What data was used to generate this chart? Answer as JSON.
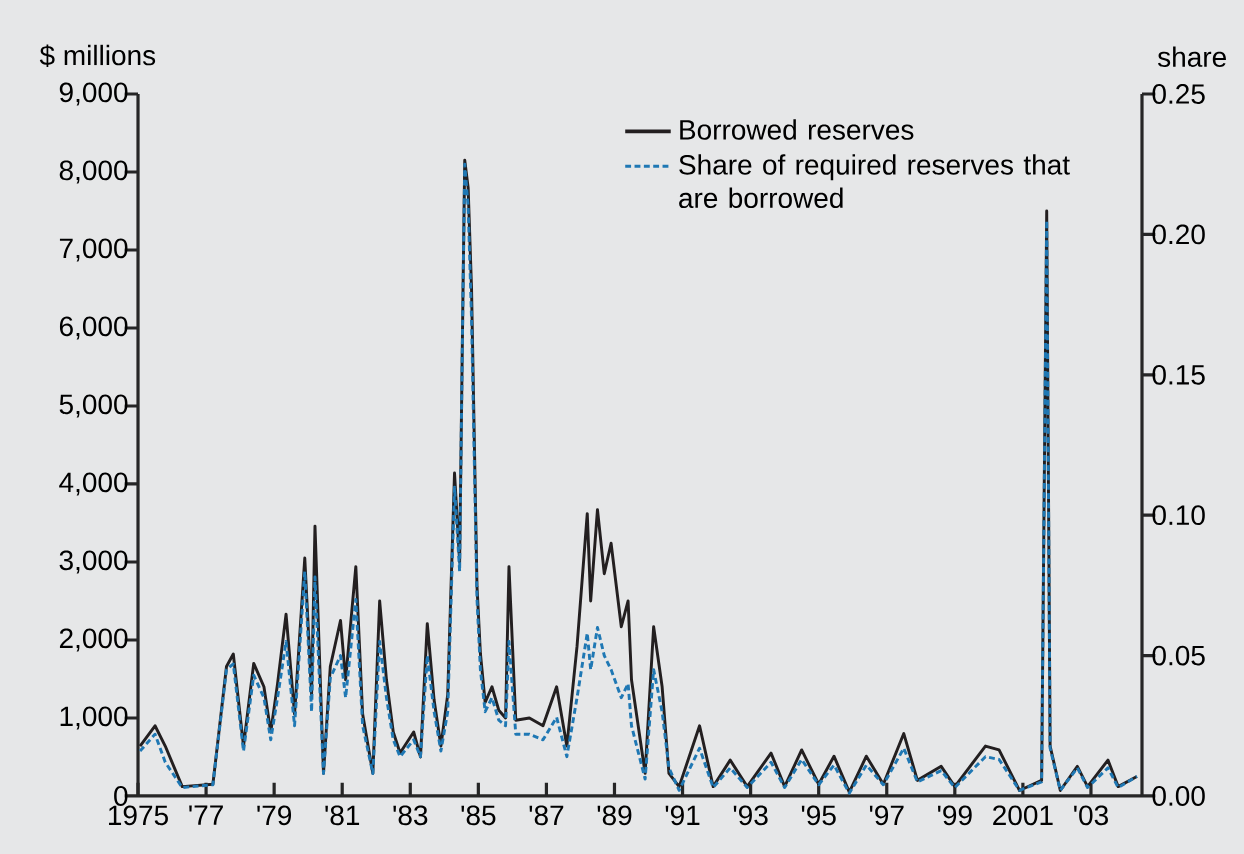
{
  "chart_data": {
    "type": "line",
    "ylabel": "$ millions",
    "y2label": "share",
    "x": [
      1975.06,
      1975.5,
      1975.8,
      1976.3,
      1977.2,
      1977.6,
      1977.8,
      1978.1,
      1978.4,
      1978.7,
      1978.9,
      1979.1,
      1979.35,
      1979.6,
      1979.9,
      1980.1,
      1980.2,
      1980.45,
      1980.65,
      1980.95,
      1981.1,
      1981.4,
      1981.6,
      1981.9,
      1982.1,
      1982.3,
      1982.5,
      1982.7,
      1983.1,
      1983.3,
      1983.5,
      1983.7,
      1983.9,
      1984.1,
      1984.3,
      1984.45,
      1984.55,
      1984.6,
      1984.7,
      1984.8,
      1984.96,
      1985.06,
      1985.2,
      1985.4,
      1985.6,
      1985.8,
      1985.9,
      1986.1,
      1986.5,
      1986.9,
      1987.3,
      1987.6,
      1987.9,
      1988.2,
      1988.3,
      1988.5,
      1988.7,
      1988.9,
      1989.2,
      1989.4,
      1989.5,
      1989.9,
      1990.15,
      1990.4,
      1990.6,
      1990.9,
      1991.5,
      1991.9,
      1992.4,
      1992.9,
      1993.6,
      1994,
      1994.5,
      1995,
      1995.45,
      1995.9,
      1996.4,
      1996.9,
      1997.5,
      1997.9,
      1998.6,
      1999,
      1999.9,
      2000.3,
      2000.9,
      2001.55,
      2001.7,
      2001.8,
      2002.1,
      2002.6,
      2002.9,
      2003.5,
      2003.8,
      2004.35
    ],
    "series": [
      {
        "name": "Borrowed reserves",
        "color": "#231f20",
        "line_style": "solid",
        "values": [
          640,
          900,
          640,
          120,
          150,
          1660,
          1820,
          640,
          1700,
          1400,
          820,
          1440,
          2330,
          1050,
          3050,
          1300,
          3460,
          290,
          1660,
          2250,
          1490,
          2940,
          1050,
          290,
          2500,
          1490,
          820,
          550,
          820,
          500,
          2210,
          1230,
          640,
          1300,
          4140,
          3000,
          6500,
          8150,
          7800,
          6500,
          2690,
          1830,
          1200,
          1400,
          1100,
          1000,
          2940,
          970,
          1000,
          900,
          1400,
          640,
          1920,
          3620,
          2500,
          3670,
          2850,
          3240,
          2170,
          2500,
          1490,
          290,
          2170,
          1400,
          290,
          120,
          900,
          120,
          460,
          120,
          550,
          120,
          590,
          150,
          510,
          50,
          510,
          150,
          800,
          200,
          380,
          120,
          640,
          590,
          70,
          200,
          7500,
          640,
          70,
          380,
          120,
          460,
          120,
          250
        ]
      },
      {
        "name": "Share of required reserves that are borrowed",
        "color": "#1f78b4",
        "line_style": "dashed",
        "axis": "y2",
        "values": [
          0.016,
          0.022,
          0.012,
          0.003,
          0.004,
          0.045,
          0.047,
          0.016,
          0.043,
          0.035,
          0.02,
          0.035,
          0.055,
          0.025,
          0.08,
          0.03,
          0.078,
          0.008,
          0.042,
          0.05,
          0.035,
          0.07,
          0.025,
          0.008,
          0.055,
          0.035,
          0.02,
          0.014,
          0.02,
          0.014,
          0.05,
          0.03,
          0.016,
          0.03,
          0.11,
          0.08,
          0.18,
          0.225,
          0.21,
          0.17,
          0.07,
          0.045,
          0.03,
          0.035,
          0.027,
          0.025,
          0.055,
          0.022,
          0.022,
          0.02,
          0.028,
          0.014,
          0.035,
          0.058,
          0.045,
          0.06,
          0.05,
          0.045,
          0.035,
          0.04,
          0.025,
          0.006,
          0.045,
          0.03,
          0.01,
          0.002,
          0.017,
          0.003,
          0.01,
          0.003,
          0.012,
          0.003,
          0.013,
          0.004,
          0.011,
          0.001,
          0.011,
          0.004,
          0.017,
          0.005,
          0.009,
          0.003,
          0.014,
          0.013,
          0.002,
          0.005,
          0.205,
          0.017,
          0.002,
          0.01,
          0.003,
          0.01,
          0.003,
          0.007
        ]
      }
    ],
    "xlim": [
      1975,
      2004.5
    ],
    "xticks": [
      1975,
      {
        "value": 1977,
        "label": "'77"
      },
      {
        "value": 1979,
        "label": "'79"
      },
      {
        "value": 1981,
        "label": "'81"
      },
      {
        "value": 1983,
        "label": "'83"
      },
      {
        "value": 1985,
        "label": "'85"
      },
      {
        "value": 1987,
        "label": "'87"
      },
      {
        "value": 1989,
        "label": "'89"
      },
      {
        "value": 1991,
        "label": "'91"
      },
      {
        "value": 1993,
        "label": "'93"
      },
      {
        "value": 1995,
        "label": "'95"
      },
      {
        "value": 1997,
        "label": "'97"
      },
      {
        "value": 1999,
        "label": "'99"
      },
      2001,
      {
        "value": 2003,
        "label": "'03"
      }
    ],
    "ylim": [
      0,
      9000
    ],
    "yticks": [
      0,
      {
        "value": 1000,
        "label": "1,000"
      },
      {
        "value": 2000,
        "label": "2,000"
      },
      {
        "value": 3000,
        "label": "3,000"
      },
      {
        "value": 4000,
        "label": "4,000"
      },
      {
        "value": 5000,
        "label": "5,000"
      },
      {
        "value": 6000,
        "label": "6,000"
      },
      {
        "value": 7000,
        "label": "7,000"
      },
      {
        "value": 8000,
        "label": "8,000"
      },
      {
        "value": 9000,
        "label": "9,000"
      }
    ],
    "y2lim": [
      0,
      0.25
    ],
    "y2ticks": [
      {
        "value": 0,
        "label": "0.00"
      },
      {
        "value": 0.05,
        "label": "0.05"
      },
      {
        "value": 0.1,
        "label": "0.10"
      },
      {
        "value": 0.15,
        "label": "0.15"
      },
      {
        "value": 0.2,
        "label": "0.20"
      },
      {
        "value": 0.25,
        "label": "0.25"
      }
    ],
    "legend": "top right"
  }
}
